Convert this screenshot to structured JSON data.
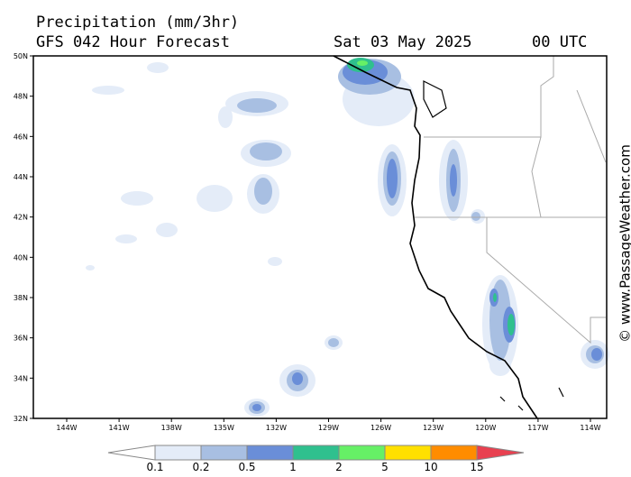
{
  "header": {
    "title": "Precipitation (mm/3hr)",
    "subtitle": "GFS 042 Hour Forecast",
    "date": "Sat 03 May 2025",
    "time": "00 UTC"
  },
  "map": {
    "lat_labels": [
      "50N",
      "48N",
      "46N",
      "44N",
      "42N",
      "40N",
      "38N",
      "36N",
      "34N",
      "32N"
    ],
    "lon_labels": [
      "144W",
      "141W",
      "138W",
      "135W",
      "132W",
      "129W",
      "126W",
      "123W",
      "120W",
      "117W",
      "114W"
    ]
  },
  "legend": {
    "labels": [
      "0.1",
      "0.2",
      "0.5",
      "1",
      "2",
      "5",
      "10",
      "15"
    ],
    "colors": [
      "#ffffff",
      "#e4ecf8",
      "#a8bfe2",
      "#6a8ed8",
      "#2fc08e",
      "#66f066",
      "#ffe000",
      "#ff8c00",
      "#e84050"
    ]
  },
  "credit": "© www.PassageWeather.com"
}
